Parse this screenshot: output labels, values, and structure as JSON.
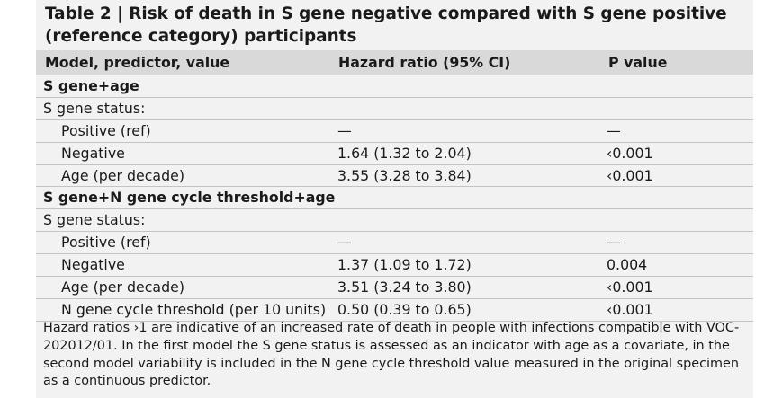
{
  "table": {
    "title": "Table 2 | Risk of death in S gene negative compared with S gene positive (reference category) participants",
    "headers": [
      "Model, predictor, value",
      "Hazard ratio (95% CI)",
      "P value"
    ],
    "rows": [
      {
        "type": "section",
        "label": "S gene+age",
        "hr": "",
        "p": ""
      },
      {
        "type": "group",
        "label": "S gene status:",
        "hr": "",
        "p": ""
      },
      {
        "type": "item",
        "label": "Positive (ref)",
        "hr": "—",
        "p": "—"
      },
      {
        "type": "item",
        "label": "Negative",
        "hr": "1.64 (1.32 to 2.04)",
        "p": "‹0.001"
      },
      {
        "type": "item",
        "label": "Age (per decade)",
        "hr": "3.55 (3.28 to 3.84)",
        "p": "‹0.001"
      },
      {
        "type": "section",
        "label": "S gene+N gene cycle threshold+age",
        "hr": "",
        "p": ""
      },
      {
        "type": "group",
        "label": "S gene status:",
        "hr": "",
        "p": ""
      },
      {
        "type": "item",
        "label": "Positive (ref)",
        "hr": "—",
        "p": "—"
      },
      {
        "type": "item",
        "label": "Negative",
        "hr": "1.37 (1.09 to 1.72)",
        "p": "0.004"
      },
      {
        "type": "item",
        "label": "Age (per decade)",
        "hr": "3.51 (3.24 to 3.80)",
        "p": "‹0.001"
      },
      {
        "type": "item",
        "label": "N gene cycle threshold (per 10 units)",
        "hr": "0.50 (0.39 to 0.65)",
        "p": "‹0.001"
      }
    ],
    "footnote": "Hazard ratios ›1 are indicative of an increased rate of death in people with infections compatible with VOC-202012/01. In the first model the S gene status is assessed as an indicator with age as a covariate, in the second model variability is included in the N gene cycle threshold value measured in the original specimen as a continuous predictor."
  }
}
